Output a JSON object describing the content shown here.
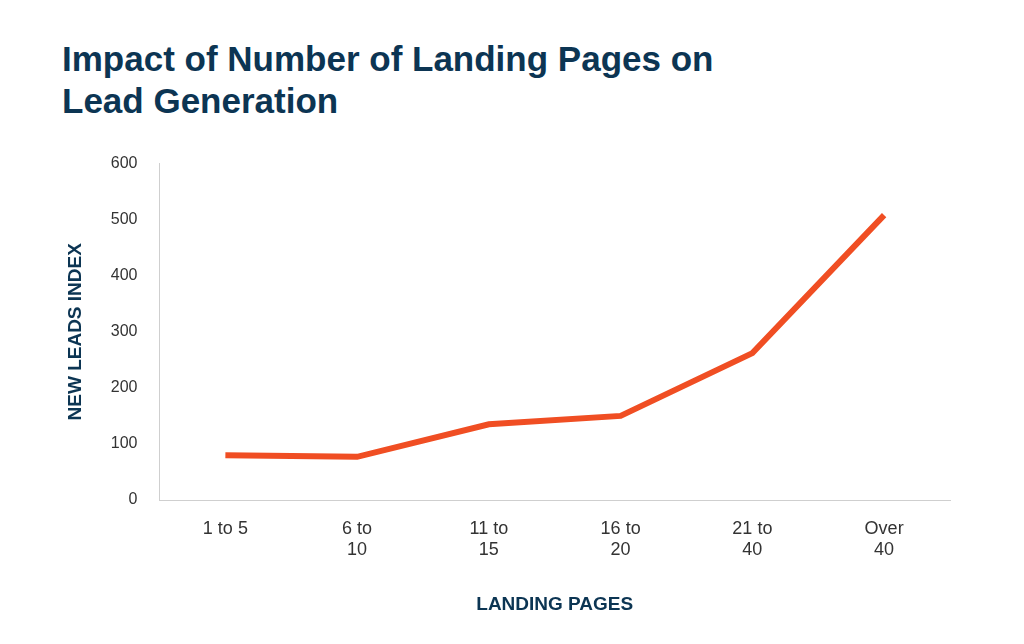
{
  "chart_data": {
    "type": "line",
    "title": "Impact of Number of Landing Pages on Lead Generation",
    "x_label": "LANDING PAGES",
    "y_label": "NEW LEADS INDEX",
    "categories": [
      "1 to 5",
      "6 to 10",
      "11 to 15",
      "16 to 20",
      "21 to 40",
      "Over 40"
    ],
    "values": [
      80,
      77,
      135,
      150,
      262,
      508
    ],
    "color": "#f04e23",
    "ylim": [
      0,
      600
    ],
    "yticks": [
      0,
      100,
      200,
      300,
      400,
      500,
      600
    ],
    "grid": false
  }
}
